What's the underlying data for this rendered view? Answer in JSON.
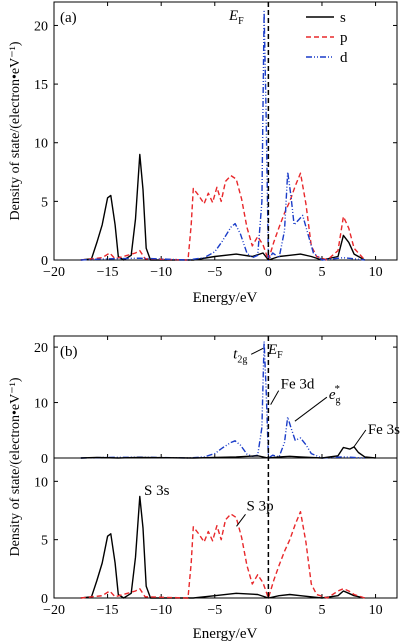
{
  "chart_data": [
    {
      "type": "line",
      "panel_label": "(a)",
      "xlabel": "Energy/eV",
      "ylabel": "Density of state/(electron•eV⁻¹)",
      "xlim": [
        -20,
        12
      ],
      "ylim": [
        0,
        22
      ],
      "x_ticks": [
        -20,
        -15,
        -10,
        -5,
        0,
        5,
        10
      ],
      "y_ticks": [
        0,
        5,
        10,
        15,
        20
      ],
      "fermi_label": "E",
      "fermi_sub": "F",
      "fermi_x": 0,
      "legend_position": "top-right",
      "series": [
        {
          "name": "s",
          "color": "#000000",
          "dash": "solid",
          "points": [
            [
              -17.5,
              0
            ],
            [
              -16.5,
              0.1
            ],
            [
              -16,
              1.5
            ],
            [
              -15.5,
              3
            ],
            [
              -15,
              5.3
            ],
            [
              -14.7,
              5.5
            ],
            [
              -14.3,
              3
            ],
            [
              -14,
              0.3
            ],
            [
              -13.5,
              0
            ],
            [
              -12.8,
              0.4
            ],
            [
              -12.4,
              3.5
            ],
            [
              -12,
              9
            ],
            [
              -11.7,
              6
            ],
            [
              -11.4,
              1
            ],
            [
              -11,
              0
            ],
            [
              -7,
              0
            ],
            [
              -5,
              0.3
            ],
            [
              -3,
              0.5
            ],
            [
              -1.5,
              0.3
            ],
            [
              -0.5,
              0.6
            ],
            [
              0,
              0
            ],
            [
              1,
              0.3
            ],
            [
              2,
              0.4
            ],
            [
              3,
              0.5
            ],
            [
              4,
              0.3
            ],
            [
              5,
              0
            ],
            [
              6.5,
              0.3
            ],
            [
              7,
              2.1
            ],
            [
              7.5,
              1.5
            ],
            [
              8,
              0.5
            ],
            [
              9,
              0
            ]
          ]
        },
        {
          "name": "p",
          "color": "#e8282b",
          "dash": "5,3",
          "points": [
            [
              -17.5,
              0
            ],
            [
              -15.5,
              0.2
            ],
            [
              -14.8,
              0.6
            ],
            [
              -14.3,
              0.1
            ],
            [
              -12.4,
              0.6
            ],
            [
              -12,
              0.8
            ],
            [
              -11.5,
              0.1
            ],
            [
              -7.5,
              0
            ],
            [
              -7.2,
              3
            ],
            [
              -7,
              6.1
            ],
            [
              -6.5,
              5.5
            ],
            [
              -6,
              4.8
            ],
            [
              -5.6,
              5.7
            ],
            [
              -5.2,
              4.9
            ],
            [
              -4.8,
              6.2
            ],
            [
              -4.4,
              5
            ],
            [
              -4,
              6.7
            ],
            [
              -3.5,
              7.2
            ],
            [
              -3,
              6.9
            ],
            [
              -2.5,
              5.2
            ],
            [
              -2,
              2.8
            ],
            [
              -1.5,
              1.2
            ],
            [
              -1,
              2
            ],
            [
              -0.5,
              1.3
            ],
            [
              0,
              0
            ],
            [
              0.5,
              1.5
            ],
            [
              1,
              2.8
            ],
            [
              1.5,
              4
            ],
            [
              2,
              5
            ],
            [
              2.5,
              6.3
            ],
            [
              3,
              7.4
            ],
            [
              3.5,
              4.8
            ],
            [
              4,
              1.2
            ],
            [
              4.5,
              0.3
            ],
            [
              5.5,
              0
            ],
            [
              6.5,
              0.8
            ],
            [
              7,
              3.7
            ],
            [
              7.5,
              2.7
            ],
            [
              8,
              1
            ],
            [
              9,
              0
            ]
          ]
        },
        {
          "name": "d",
          "color": "#1a3cc8",
          "dash": "6,2,1,2,1,2",
          "points": [
            [
              -17.5,
              0
            ],
            [
              -15,
              0.1
            ],
            [
              -12,
              0.15
            ],
            [
              -7.5,
              0
            ],
            [
              -6,
              0.2
            ],
            [
              -5,
              0.7
            ],
            [
              -4.3,
              1.6
            ],
            [
              -3.5,
              2.8
            ],
            [
              -3.1,
              3.1
            ],
            [
              -2.6,
              2.2
            ],
            [
              -2,
              0.6
            ],
            [
              -1.5,
              0.2
            ],
            [
              -1,
              0.4
            ],
            [
              -0.6,
              5
            ],
            [
              -0.4,
              21.2
            ],
            [
              -0.2,
              12
            ],
            [
              0,
              0
            ],
            [
              0.4,
              0.6
            ],
            [
              1,
              0.2
            ],
            [
              1.5,
              2.5
            ],
            [
              1.8,
              7.5
            ],
            [
              2.1,
              5.5
            ],
            [
              2.4,
              3
            ],
            [
              2.8,
              3.4
            ],
            [
              3.2,
              3.8
            ],
            [
              3.7,
              2.2
            ],
            [
              4.2,
              0.6
            ],
            [
              5,
              0
            ],
            [
              7,
              0.2
            ],
            [
              9,
              0
            ]
          ]
        }
      ]
    },
    {
      "type": "line",
      "panel_label": "(b)",
      "xlabel": "Energy/eV",
      "ylabel": "Density of state/(electron•eV⁻¹)",
      "xlim": [
        -20,
        12
      ],
      "x_ticks": [
        -20,
        -15,
        -10,
        -5,
        0,
        5,
        10
      ],
      "fermi_label": "E",
      "fermi_sub": "F",
      "fermi_x": 0,
      "upper": {
        "ylim": [
          0,
          22
        ],
        "y_ticks": [
          0,
          10,
          20
        ],
        "annotations": [
          {
            "text": "t",
            "sub": "2g",
            "sup": "",
            "x": -0.3,
            "y": 20.5
          },
          {
            "text": "Fe 3d",
            "sub": "",
            "sup": "",
            "x": 0.4,
            "y": 12.5
          },
          {
            "text": "e",
            "sub": "g",
            "sup": "*",
            "x": 2.1,
            "y": 7.0
          },
          {
            "text": "Fe 3s",
            "sub": "",
            "sup": "",
            "x": 7.6,
            "y": 1.8
          }
        ],
        "series": [
          {
            "name": "Fe d",
            "color": "#1a3cc8",
            "dash": "6,2,1,2,1,2",
            "points": [
              [
                -17.5,
                0
              ],
              [
                -15,
                0.1
              ],
              [
                -12,
                0.15
              ],
              [
                -7.5,
                0
              ],
              [
                -6,
                0.2
              ],
              [
                -5,
                0.8
              ],
              [
                -4.3,
                1.8
              ],
              [
                -3.5,
                2.8
              ],
              [
                -3.1,
                3.1
              ],
              [
                -2.6,
                2.3
              ],
              [
                -2,
                0.7
              ],
              [
                -1.5,
                0.3
              ],
              [
                -1,
                0.5
              ],
              [
                -0.6,
                5.5
              ],
              [
                -0.4,
                21
              ],
              [
                -0.2,
                12
              ],
              [
                0,
                0
              ],
              [
                0.4,
                0.5
              ],
              [
                1,
                0.2
              ],
              [
                1.5,
                2.8
              ],
              [
                1.8,
                7.4
              ],
              [
                2.1,
                5.5
              ],
              [
                2.5,
                3.2
              ],
              [
                3,
                3.6
              ],
              [
                3.5,
                2.4
              ],
              [
                4,
                0.8
              ],
              [
                5,
                0
              ],
              [
                7,
                0.2
              ],
              [
                9,
                0
              ]
            ]
          },
          {
            "name": "Fe s",
            "color": "#000000",
            "dash": "solid",
            "points": [
              [
                -17.5,
                0
              ],
              [
                -16,
                0.1
              ],
              [
                -14,
                0
              ],
              [
                -12,
                0.1
              ],
              [
                -7,
                0
              ],
              [
                -3,
                0.2
              ],
              [
                -1,
                0.4
              ],
              [
                0,
                0
              ],
              [
                1,
                0.2
              ],
              [
                2,
                0.3
              ],
              [
                3,
                0.2
              ],
              [
                5,
                0
              ],
              [
                6.5,
                0.4
              ],
              [
                7,
                1.9
              ],
              [
                7.6,
                1.6
              ],
              [
                8,
                2
              ],
              [
                8.4,
                1
              ],
              [
                9,
                0.2
              ],
              [
                10,
                0
              ]
            ]
          }
        ]
      },
      "lower": {
        "ylim": [
          0,
          12
        ],
        "y_ticks": [
          0,
          5,
          10
        ],
        "annotations": [
          {
            "text": "S 3s",
            "sub": "",
            "sup": "",
            "x": -11.6,
            "y": 8.5
          },
          {
            "text": "S 3p",
            "sub": "",
            "sup": "",
            "x": -2.6,
            "y": 7.0
          }
        ],
        "series": [
          {
            "name": "S s",
            "color": "#000000",
            "dash": "solid",
            "points": [
              [
                -17.5,
                0
              ],
              [
                -16.5,
                0.1
              ],
              [
                -16,
                1.5
              ],
              [
                -15.5,
                3
              ],
              [
                -15,
                5.3
              ],
              [
                -14.7,
                5.5
              ],
              [
                -14.3,
                3
              ],
              [
                -14,
                0.3
              ],
              [
                -13.5,
                0
              ],
              [
                -12.8,
                0.4
              ],
              [
                -12.4,
                3.5
              ],
              [
                -12,
                8.7
              ],
              [
                -11.7,
                6
              ],
              [
                -11.4,
                1
              ],
              [
                -11,
                0
              ],
              [
                -7,
                0
              ],
              [
                -5,
                0.2
              ],
              [
                -3,
                0.4
              ],
              [
                -1,
                0.3
              ],
              [
                0,
                0
              ],
              [
                1,
                0.2
              ],
              [
                2,
                0.3
              ],
              [
                3,
                0.2
              ],
              [
                5,
                0
              ],
              [
                6.5,
                0.2
              ],
              [
                7,
                0.6
              ],
              [
                7.5,
                0.4
              ],
              [
                8,
                0.2
              ],
              [
                9,
                0
              ]
            ]
          },
          {
            "name": "S p",
            "color": "#e8282b",
            "dash": "5,3",
            "points": [
              [
                -17.5,
                0
              ],
              [
                -15.5,
                0.2
              ],
              [
                -14.8,
                0.6
              ],
              [
                -14.3,
                0.1
              ],
              [
                -12.4,
                0.6
              ],
              [
                -12,
                0.8
              ],
              [
                -11.5,
                0.1
              ],
              [
                -7.5,
                0
              ],
              [
                -7.2,
                3
              ],
              [
                -7,
                6.1
              ],
              [
                -6.5,
                5.5
              ],
              [
                -6,
                4.8
              ],
              [
                -5.6,
                5.7
              ],
              [
                -5.2,
                4.9
              ],
              [
                -4.8,
                6.2
              ],
              [
                -4.4,
                5
              ],
              [
                -4,
                6.7
              ],
              [
                -3.5,
                7.2
              ],
              [
                -3,
                6.9
              ],
              [
                -2.5,
                5.2
              ],
              [
                -2,
                2.8
              ],
              [
                -1.5,
                1.2
              ],
              [
                -1,
                2
              ],
              [
                -0.5,
                1.3
              ],
              [
                0,
                0
              ],
              [
                0.5,
                1.5
              ],
              [
                1,
                2.8
              ],
              [
                1.5,
                4
              ],
              [
                2,
                5
              ],
              [
                2.5,
                6.3
              ],
              [
                3,
                7.4
              ],
              [
                3.5,
                4.8
              ],
              [
                4,
                1.2
              ],
              [
                4.5,
                0.3
              ],
              [
                5.5,
                0
              ],
              [
                6.5,
                0.6
              ],
              [
                7,
                0.8
              ],
              [
                7.5,
                0.6
              ],
              [
                8,
                0.3
              ],
              [
                9,
                0
              ]
            ]
          }
        ]
      }
    }
  ]
}
